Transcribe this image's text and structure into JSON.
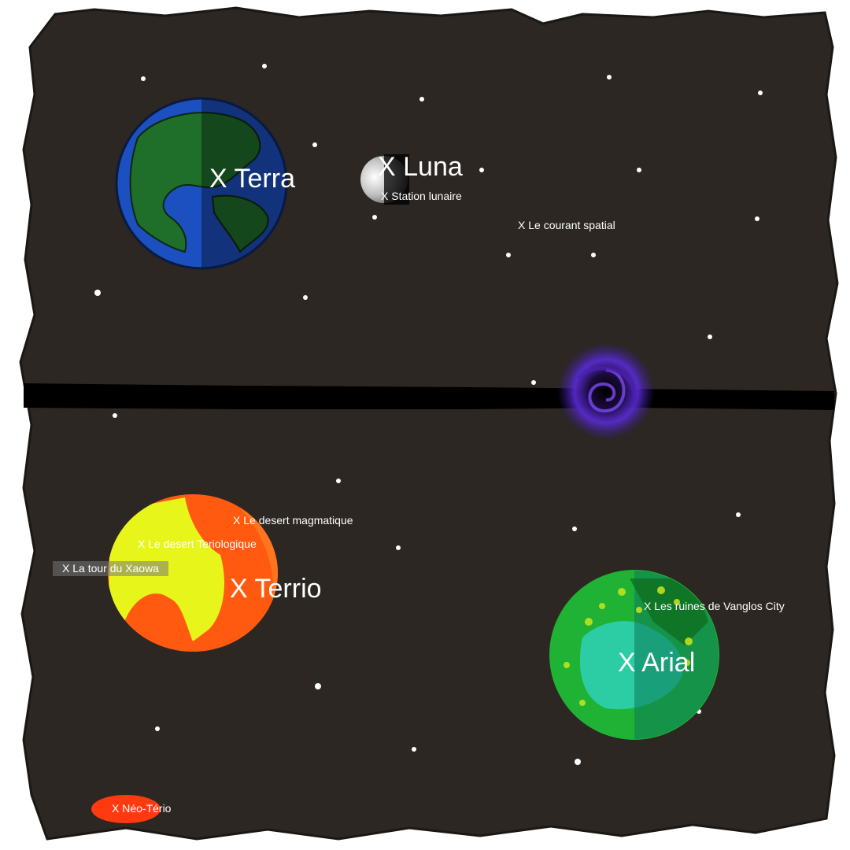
{
  "map": {
    "background_color": "#2c2722",
    "border_color": "#ffffff",
    "star_color": "#ffffff",
    "rift_color": "#000000",
    "vortex_color": "#5a2bd6",
    "places": {
      "terra": "X Terra",
      "luna": "X Luna",
      "terrio": "X Terrio",
      "arial": "X Arial",
      "station_lunaire": "X Station lunaire",
      "courant_spatial": "X Le courant spatial",
      "desert_magmatique": "X Le desert magmatique",
      "desert_teriologique": "X Le desert Teriologique",
      "tour_xaowa": "X La tour du Xaowa",
      "ruines_vanglos": "X Les ruines de Vanglos City",
      "neo_terio": "X Néo-Tério"
    },
    "planet_colors": {
      "terra_ocean": "#1c4fbf",
      "terra_land": "#1f6e2a",
      "luna": "#d9d9d9",
      "terrio_core": "#e8f51a",
      "terrio_magma": "#ff5a10",
      "arial_base": "#1fb234",
      "arial_sea": "#2fd1b8",
      "neo_terio": "#ff3a10"
    }
  }
}
